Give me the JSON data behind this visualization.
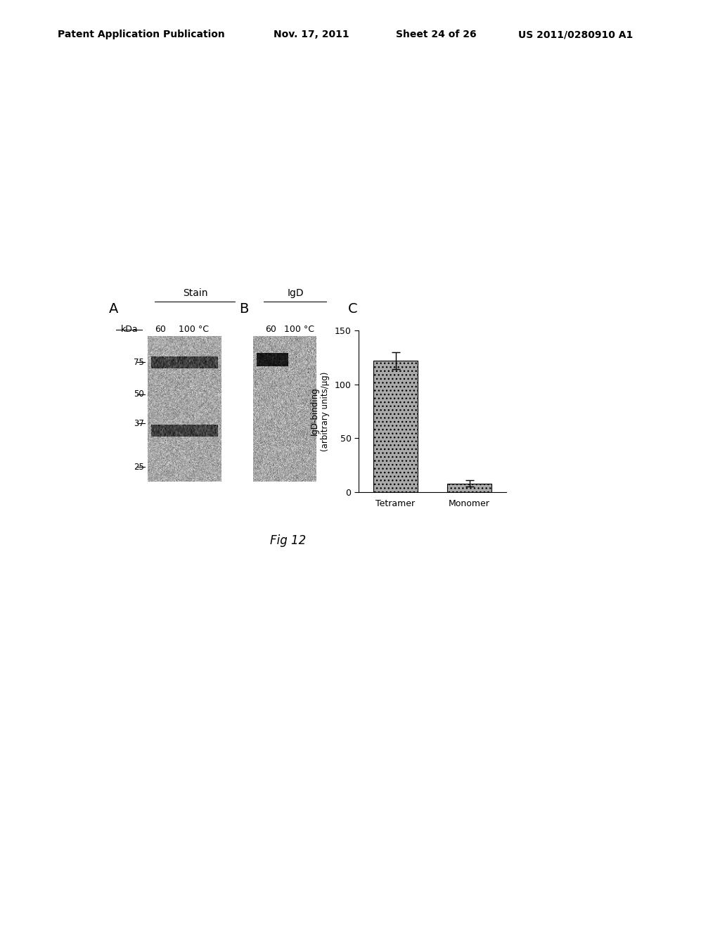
{
  "title_header": "Patent Application Publication",
  "title_date": "Nov. 17, 2011",
  "title_sheet": "Sheet 24 of 26",
  "title_patent": "US 2011/0280910 A1",
  "fig_label": "Fig 12",
  "panel_A_label": "A",
  "panel_B_label": "B",
  "panel_C_label": "C",
  "stain_label": "Stain",
  "IgD_label": "IgD",
  "kDa_label": "kDa",
  "temp_labels": [
    "60",
    "100 °C"
  ],
  "mw_markers": [
    75,
    50,
    37,
    25
  ],
  "bar_categories": [
    "Tetramer",
    "Monomer"
  ],
  "bar_values": [
    122,
    8
  ],
  "bar_errors": [
    8,
    3
  ],
  "bar_color": "#aaaaaa",
  "ylabel_line1": "IgD-binding",
  "ylabel_line2": "(arbitrary units/μg)",
  "ylim": [
    0,
    150
  ],
  "yticks": [
    0,
    50,
    100,
    150
  ],
  "background_color": "#ffffff",
  "gel_bg_color": "#c8c8c8",
  "gel_band_color_dark": "#202020",
  "gel_band_color_mid": "#606060"
}
